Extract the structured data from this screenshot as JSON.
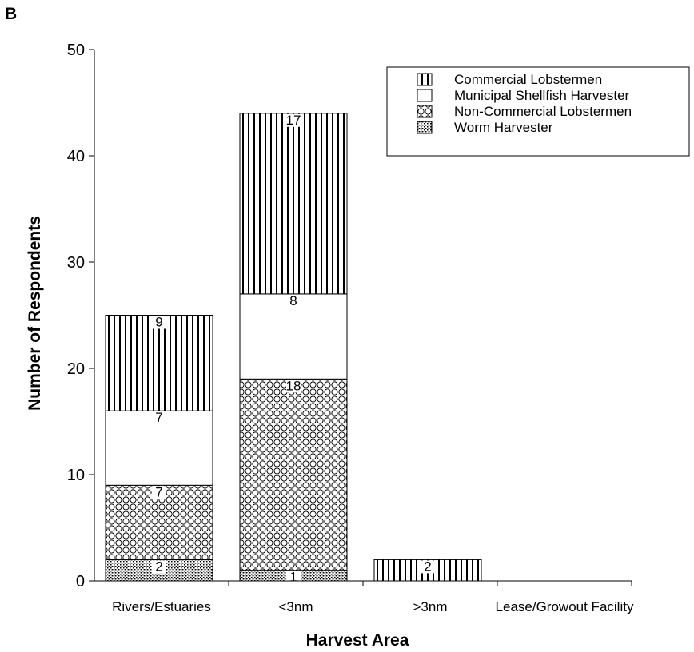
{
  "panel_label": "B",
  "colors": {
    "ink": "#000000",
    "background": "#ffffff"
  },
  "chart_data": {
    "type": "bar",
    "stacked": true,
    "categories": [
      "Rivers/Estuaries",
      "<3nm",
      ">3nm",
      "Lease/Growout Facility"
    ],
    "series": [
      {
        "name": "Worm Harvester",
        "pattern": "dots",
        "values": [
          2,
          1,
          0,
          0
        ]
      },
      {
        "name": "Non-Commercial Lobstermen",
        "pattern": "circles",
        "values": [
          7,
          18,
          0,
          0
        ]
      },
      {
        "name": "Municipal Shellfish Harvester",
        "pattern": "blank",
        "values": [
          7,
          8,
          0,
          0
        ]
      },
      {
        "name": "Commercial Lobstermen",
        "pattern": "vertical-lines",
        "values": [
          9,
          17,
          2,
          0
        ]
      }
    ],
    "legend_order": [
      "Commercial Lobstermen",
      "Municipal Shellfish Harvester",
      "Non-Commercial Lobstermen",
      "Worm Harvester"
    ],
    "title": "",
    "xlabel": "Harvest Area",
    "ylabel": "Number of Respondents",
    "ylim": [
      0,
      50
    ],
    "yticks": [
      0,
      10,
      20,
      30,
      40,
      50
    ],
    "grid": false,
    "legend_position": "top-right"
  }
}
